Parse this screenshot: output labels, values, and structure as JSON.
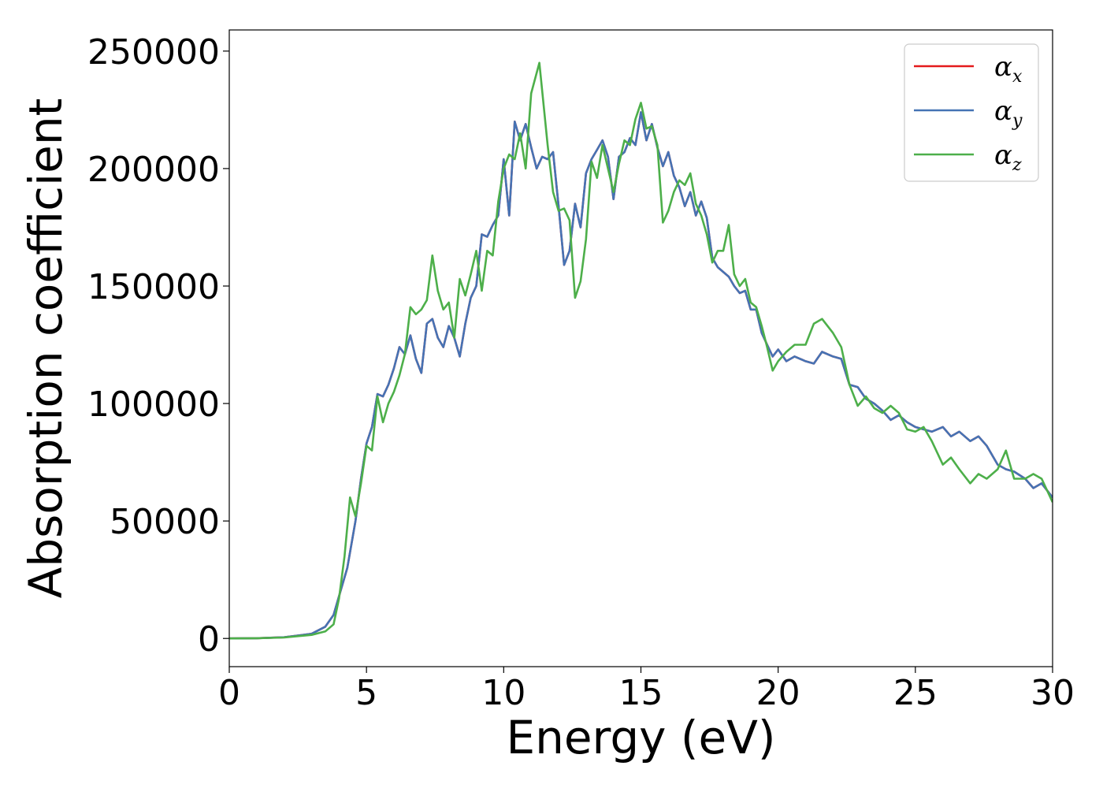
{
  "chart_data": {
    "type": "line",
    "xlabel": "Energy (eV)",
    "ylabel": "Absorption coefficient",
    "xlim": [
      0,
      30
    ],
    "ylim": [
      -12000,
      259000
    ],
    "x_ticks": [
      "0",
      "5",
      "10",
      "15",
      "20",
      "25",
      "30"
    ],
    "y_ticks": [
      "0",
      "50000",
      "100000",
      "150000",
      "200000",
      "250000"
    ],
    "grid": false,
    "legend_position": "top-right",
    "series": [
      {
        "symbol": "α",
        "subscript": "x",
        "color": "#e41a1c",
        "x": [
          0,
          1,
          2,
          3,
          3.5,
          3.8,
          4.0,
          4.3,
          4.6,
          4.8,
          5.0,
          5.2,
          5.4,
          5.6,
          5.8,
          6.0,
          6.2,
          6.4,
          6.6,
          6.8,
          7.0,
          7.2,
          7.4,
          7.6,
          7.8,
          8.0,
          8.2,
          8.4,
          8.6,
          8.8,
          9.0,
          9.2,
          9.4,
          9.6,
          9.8,
          10.0,
          10.2,
          10.4,
          10.6,
          10.8,
          11.0,
          11.2,
          11.4,
          11.6,
          11.8,
          12.0,
          12.2,
          12.4,
          12.6,
          12.8,
          13.0,
          13.2,
          13.4,
          13.6,
          13.8,
          14.0,
          14.2,
          14.4,
          14.6,
          14.8,
          15.0,
          15.2,
          15.4,
          15.6,
          15.8,
          16.0,
          16.2,
          16.4,
          16.6,
          16.8,
          17.0,
          17.2,
          17.4,
          17.6,
          17.8,
          18.0,
          18.2,
          18.4,
          18.6,
          18.8,
          19.0,
          19.2,
          19.4,
          19.6,
          19.8,
          20.0,
          20.3,
          20.6,
          21.0,
          21.3,
          21.6,
          22.0,
          22.3,
          22.6,
          22.9,
          23.2,
          23.5,
          23.8,
          24.1,
          24.4,
          24.7,
          25.0,
          25.3,
          25.6,
          26.0,
          26.3,
          26.6,
          27.0,
          27.3,
          27.6,
          28.0,
          28.3,
          28.6,
          29.0,
          29.3,
          29.6,
          30.0
        ],
        "y": [
          0,
          100,
          500,
          2000,
          5000,
          10000,
          18000,
          30000,
          50000,
          68000,
          83000,
          90000,
          104000,
          103000,
          108000,
          115000,
          124000,
          121000,
          129000,
          119000,
          113000,
          134000,
          136000,
          128000,
          124000,
          133000,
          128000,
          120000,
          134000,
          145000,
          150000,
          172000,
          171000,
          176000,
          180000,
          204000,
          180000,
          220000,
          212000,
          219000,
          209000,
          200000,
          205000,
          204000,
          207000,
          184000,
          159000,
          165000,
          185000,
          175000,
          198000,
          204000,
          208000,
          212000,
          205000,
          187000,
          205000,
          207000,
          213000,
          210000,
          224000,
          212000,
          219000,
          209000,
          201000,
          207000,
          197000,
          192000,
          184000,
          190000,
          180000,
          186000,
          179000,
          162000,
          158000,
          156000,
          154000,
          150000,
          147000,
          148000,
          140000,
          140000,
          130000,
          125000,
          120000,
          123000,
          118000,
          120000,
          118000,
          117000,
          122000,
          120000,
          119000,
          108000,
          107000,
          102000,
          100000,
          97000,
          93000,
          95000,
          92000,
          90000,
          89000,
          88000,
          90000,
          86000,
          88000,
          84000,
          86000,
          82000,
          74000,
          72000,
          71000,
          68000,
          64000,
          66000,
          60000
        ],
        "render_order": 1
      },
      {
        "symbol": "α",
        "subscript": "y",
        "color": "#4573b4",
        "x": [
          0,
          1,
          2,
          3,
          3.5,
          3.8,
          4.0,
          4.3,
          4.6,
          4.8,
          5.0,
          5.2,
          5.4,
          5.6,
          5.8,
          6.0,
          6.2,
          6.4,
          6.6,
          6.8,
          7.0,
          7.2,
          7.4,
          7.6,
          7.8,
          8.0,
          8.2,
          8.4,
          8.6,
          8.8,
          9.0,
          9.2,
          9.4,
          9.6,
          9.8,
          10.0,
          10.2,
          10.4,
          10.6,
          10.8,
          11.0,
          11.2,
          11.4,
          11.6,
          11.8,
          12.0,
          12.2,
          12.4,
          12.6,
          12.8,
          13.0,
          13.2,
          13.4,
          13.6,
          13.8,
          14.0,
          14.2,
          14.4,
          14.6,
          14.8,
          15.0,
          15.2,
          15.4,
          15.6,
          15.8,
          16.0,
          16.2,
          16.4,
          16.6,
          16.8,
          17.0,
          17.2,
          17.4,
          17.6,
          17.8,
          18.0,
          18.2,
          18.4,
          18.6,
          18.8,
          19.0,
          19.2,
          19.4,
          19.6,
          19.8,
          20.0,
          20.3,
          20.6,
          21.0,
          21.3,
          21.6,
          22.0,
          22.3,
          22.6,
          22.9,
          23.2,
          23.5,
          23.8,
          24.1,
          24.4,
          24.7,
          25.0,
          25.3,
          25.6,
          26.0,
          26.3,
          26.6,
          27.0,
          27.3,
          27.6,
          28.0,
          28.3,
          28.6,
          29.0,
          29.3,
          29.6,
          30.0
        ],
        "y": [
          0,
          100,
          500,
          2000,
          5000,
          10000,
          18000,
          30000,
          50000,
          68000,
          83000,
          90000,
          104000,
          103000,
          108000,
          115000,
          124000,
          121000,
          129000,
          119000,
          113000,
          134000,
          136000,
          128000,
          124000,
          133000,
          128000,
          120000,
          134000,
          145000,
          150000,
          172000,
          171000,
          176000,
          180000,
          204000,
          180000,
          220000,
          212000,
          219000,
          209000,
          200000,
          205000,
          204000,
          207000,
          184000,
          159000,
          165000,
          185000,
          175000,
          198000,
          204000,
          208000,
          212000,
          205000,
          187000,
          205000,
          207000,
          213000,
          210000,
          224000,
          212000,
          219000,
          209000,
          201000,
          207000,
          197000,
          192000,
          184000,
          190000,
          180000,
          186000,
          179000,
          162000,
          158000,
          156000,
          154000,
          150000,
          147000,
          148000,
          140000,
          140000,
          130000,
          125000,
          120000,
          123000,
          118000,
          120000,
          118000,
          117000,
          122000,
          120000,
          119000,
          108000,
          107000,
          102000,
          100000,
          97000,
          93000,
          95000,
          92000,
          90000,
          89000,
          88000,
          90000,
          86000,
          88000,
          84000,
          86000,
          82000,
          74000,
          72000,
          71000,
          68000,
          64000,
          66000,
          60000
        ],
        "render_order": 2
      },
      {
        "symbol": "α",
        "subscript": "z",
        "color": "#4daf4a",
        "x": [
          0,
          1,
          2,
          3,
          3.5,
          3.8,
          4.0,
          4.2,
          4.4,
          4.6,
          4.8,
          5.0,
          5.2,
          5.4,
          5.6,
          5.8,
          6.0,
          6.2,
          6.4,
          6.6,
          6.8,
          7.0,
          7.2,
          7.4,
          7.6,
          7.8,
          8.0,
          8.2,
          8.4,
          8.6,
          8.8,
          9.0,
          9.2,
          9.4,
          9.6,
          9.8,
          10.0,
          10.2,
          10.4,
          10.6,
          10.8,
          11.0,
          11.3,
          11.6,
          11.8,
          12.0,
          12.2,
          12.4,
          12.6,
          12.8,
          13.0,
          13.2,
          13.4,
          13.6,
          13.8,
          14.0,
          14.2,
          14.4,
          14.6,
          14.8,
          15.0,
          15.2,
          15.4,
          15.6,
          15.8,
          16.0,
          16.2,
          16.4,
          16.6,
          16.8,
          17.0,
          17.2,
          17.4,
          17.6,
          17.8,
          18.0,
          18.2,
          18.4,
          18.6,
          18.8,
          19.0,
          19.2,
          19.4,
          19.6,
          19.8,
          20.0,
          20.3,
          20.6,
          21.0,
          21.3,
          21.6,
          22.0,
          22.3,
          22.6,
          22.9,
          23.2,
          23.5,
          23.8,
          24.1,
          24.4,
          24.7,
          25.0,
          25.3,
          25.6,
          26.0,
          26.3,
          26.6,
          27.0,
          27.3,
          27.6,
          28.0,
          28.3,
          28.6,
          29.0,
          29.3,
          29.6,
          30.0
        ],
        "y": [
          0,
          100,
          400,
          1500,
          3000,
          6000,
          17000,
          35000,
          60000,
          52000,
          66000,
          82000,
          80000,
          103000,
          92000,
          100000,
          105000,
          112000,
          121000,
          141000,
          138000,
          140000,
          144000,
          163000,
          148000,
          140000,
          143000,
          128000,
          153000,
          146000,
          155000,
          165000,
          148000,
          165000,
          163000,
          186000,
          200000,
          206000,
          204000,
          215000,
          200000,
          232000,
          245000,
          210000,
          190000,
          182000,
          183000,
          178000,
          145000,
          152000,
          170000,
          203000,
          196000,
          210000,
          200000,
          190000,
          202000,
          212000,
          210000,
          221000,
          228000,
          217000,
          218000,
          210000,
          177000,
          182000,
          190000,
          195000,
          193000,
          198000,
          185000,
          180000,
          172000,
          160000,
          165000,
          165000,
          176000,
          155000,
          150000,
          153000,
          143000,
          141000,
          133000,
          124000,
          114000,
          118000,
          122000,
          125000,
          125000,
          134000,
          136000,
          130000,
          124000,
          108000,
          99000,
          103000,
          98000,
          96000,
          99000,
          96000,
          89000,
          88000,
          90000,
          84000,
          74000,
          77000,
          72000,
          66000,
          70000,
          68000,
          72000,
          80000,
          68000,
          68000,
          70000,
          68000,
          58000
        ],
        "render_order": 3
      }
    ]
  }
}
